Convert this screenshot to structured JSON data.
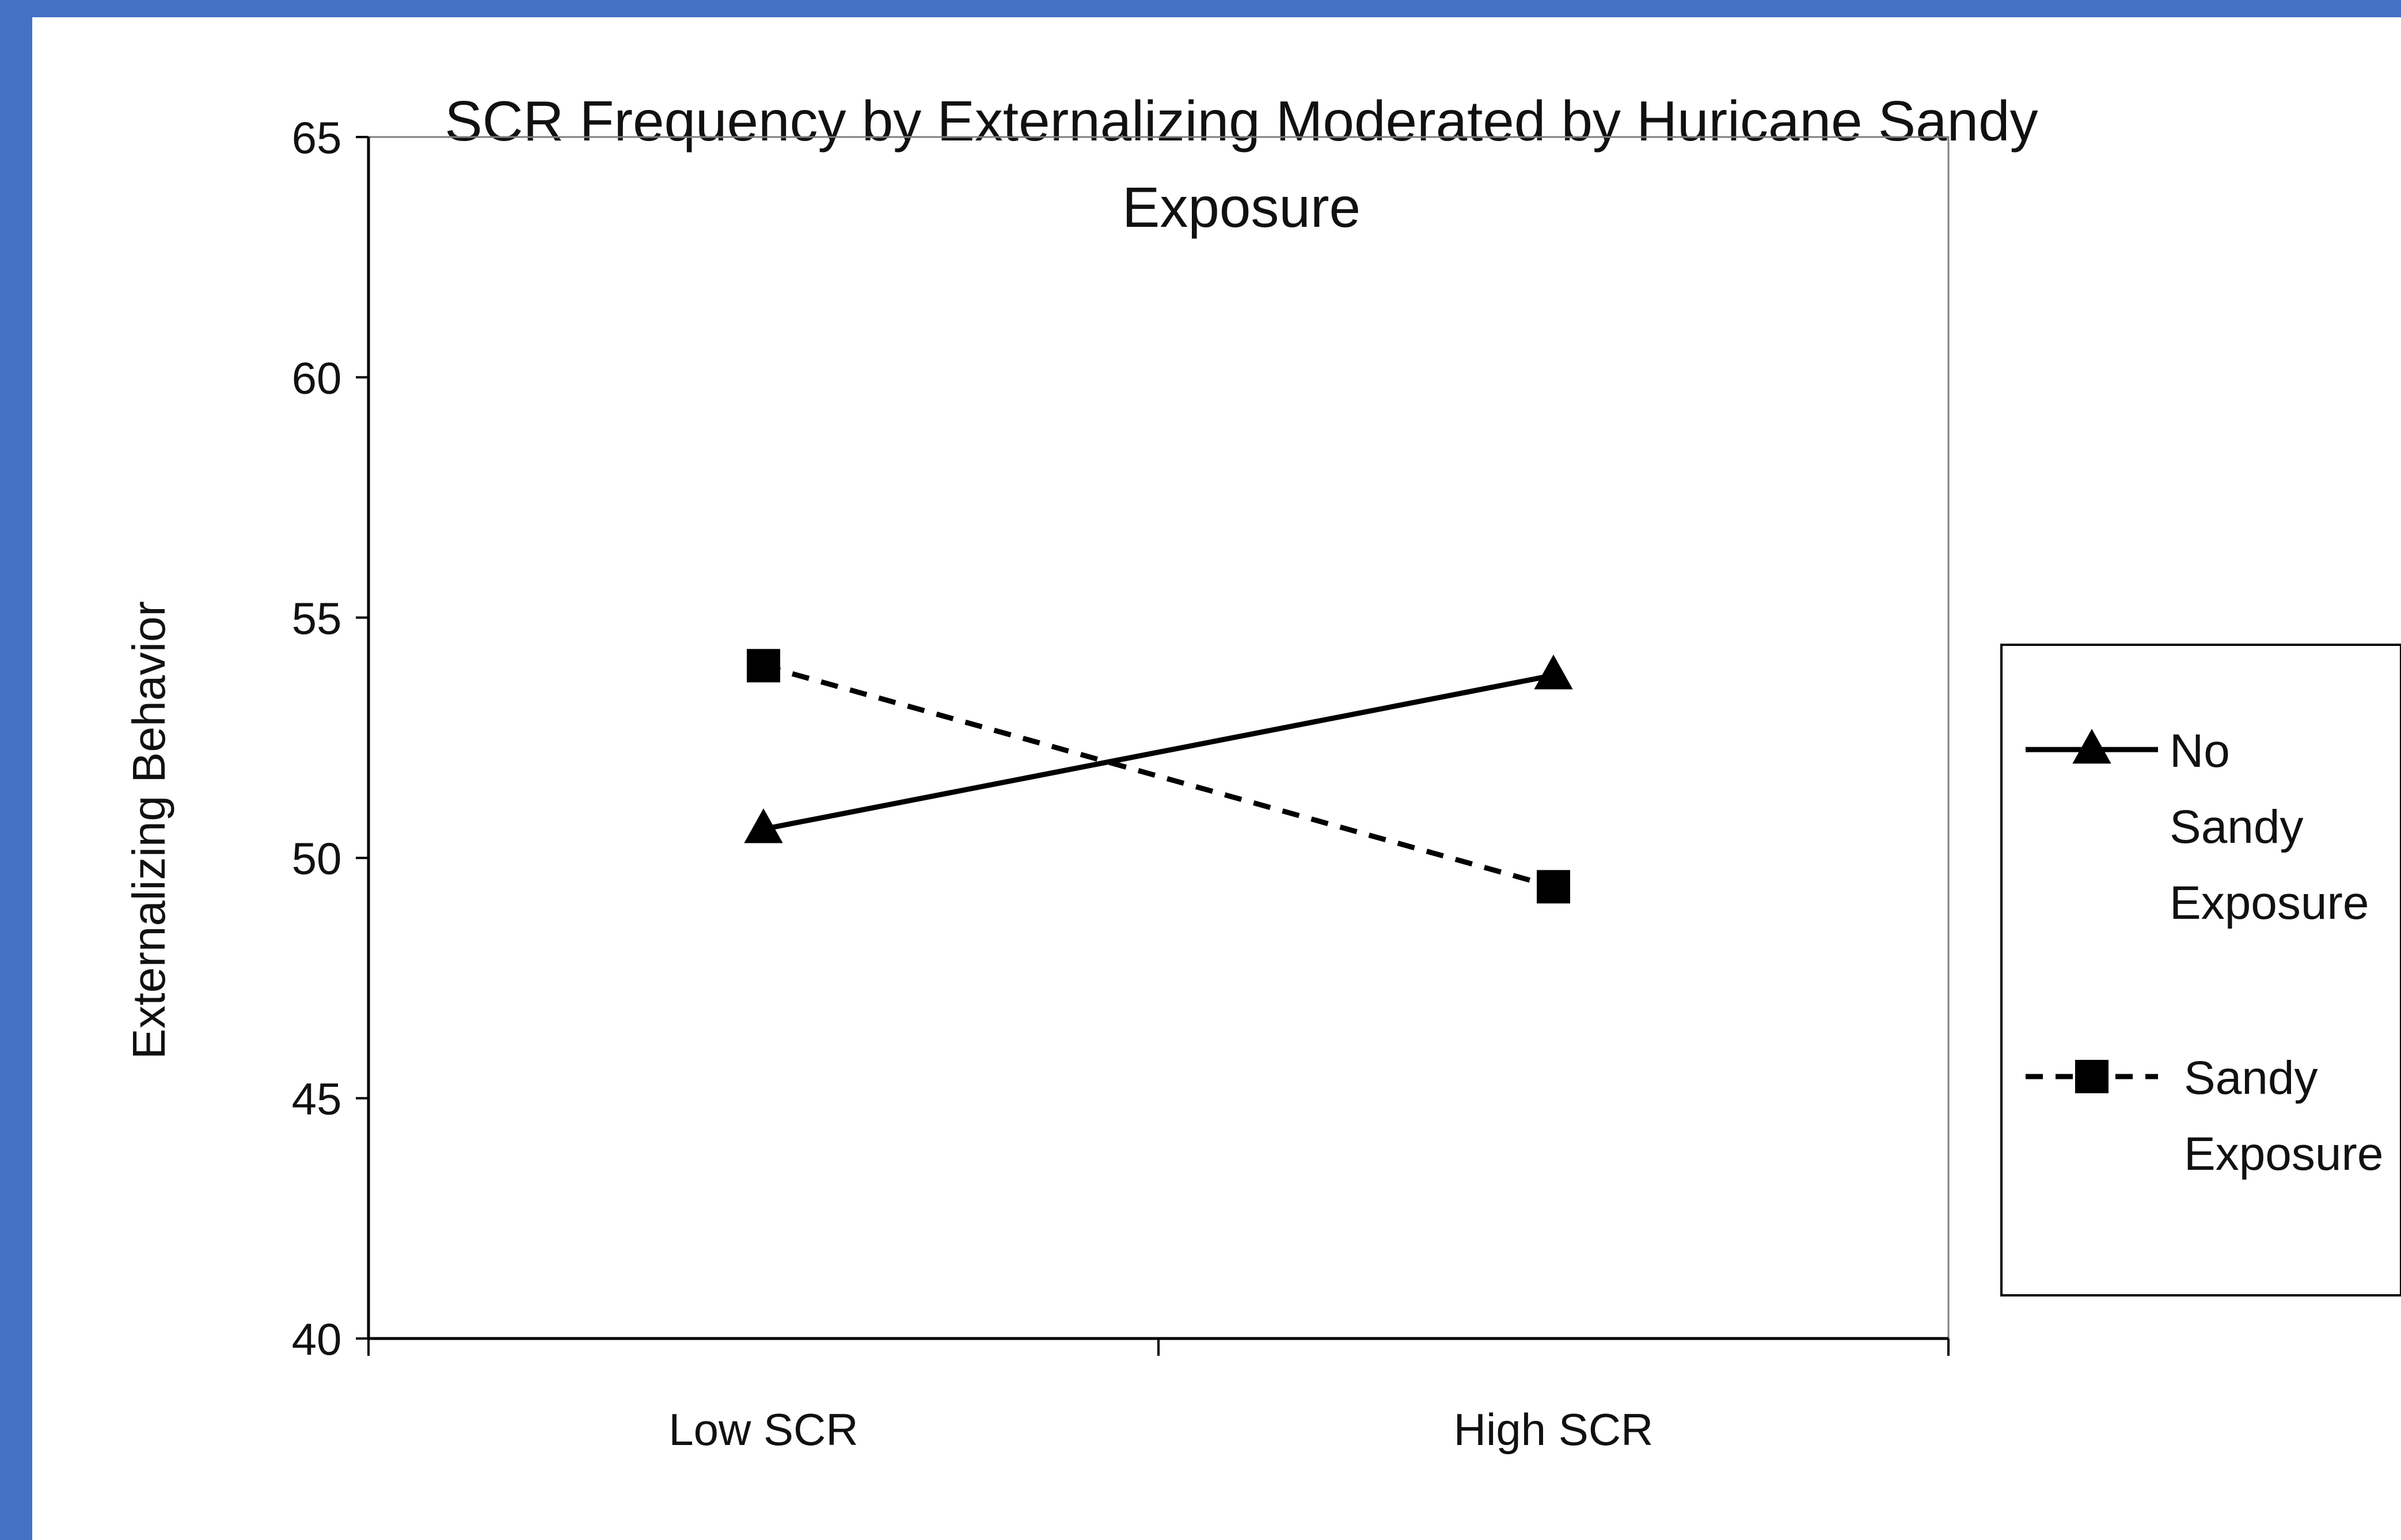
{
  "chart_data": {
    "type": "line",
    "title_line1": "SCR Frequency by Externalizing Moderated by Huricane Sandy",
    "title_line2": "Exposure",
    "xlabel": "",
    "ylabel": "Externalizing Behavior",
    "categories": [
      "Low SCR",
      "High SCR"
    ],
    "ylim": [
      40,
      65
    ],
    "yticks": [
      "40",
      "45",
      "50",
      "55",
      "60",
      "65"
    ],
    "grid": false,
    "legend_position": "right",
    "series": [
      {
        "name_lines": [
          "No",
          "Sandy",
          "Exposure"
        ],
        "values": [
          50.6,
          53.8
        ],
        "line_style": "solid",
        "marker": "triangle",
        "color": "#000000"
      },
      {
        "name_lines": [
          "Sandy",
          "Exposure"
        ],
        "values": [
          54.0,
          49.4
        ],
        "line_style": "dashed",
        "marker": "square",
        "color": "#000000"
      }
    ]
  },
  "colors": {
    "page_border": "#4472C4",
    "background": "#ffffff",
    "ink": "#000000"
  }
}
